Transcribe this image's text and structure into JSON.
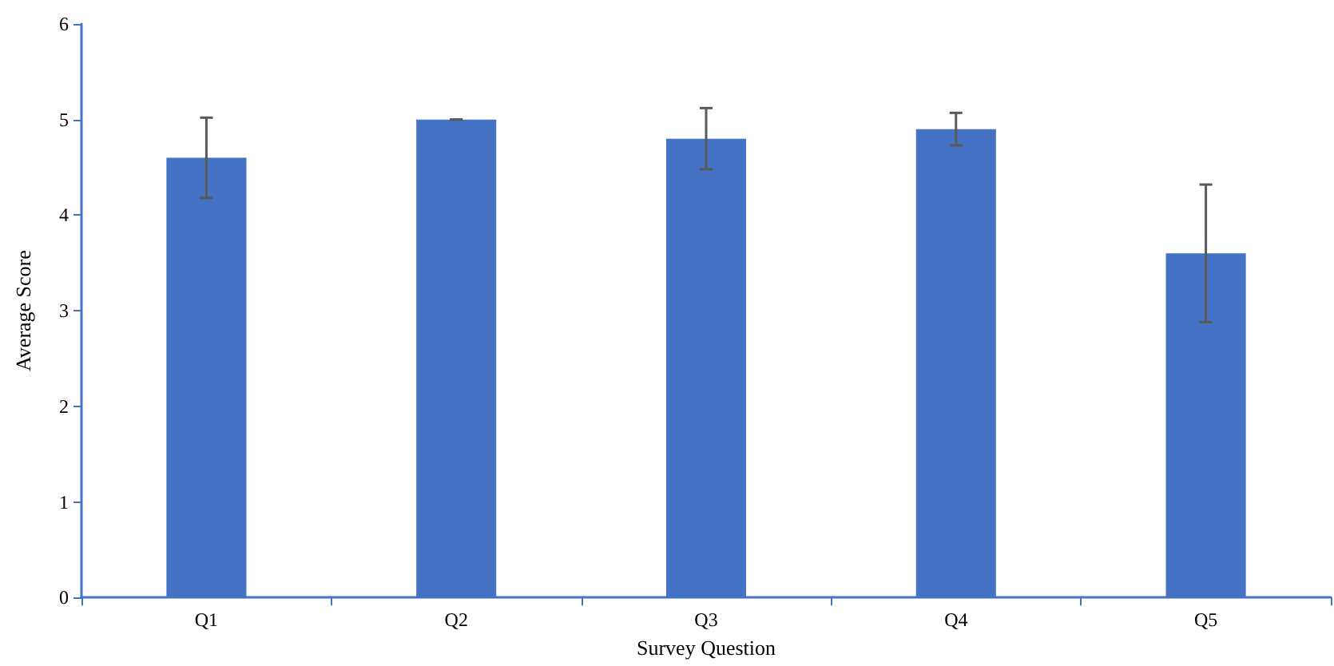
{
  "chart_data": {
    "type": "bar",
    "xlabel": "Survey Question",
    "ylabel": "Average Score",
    "categories": [
      "Q1",
      "Q2",
      "Q3",
      "Q4",
      "Q5"
    ],
    "values": [
      4.6,
      5.0,
      4.8,
      4.9,
      3.6
    ],
    "errors": [
      0.42,
      0,
      0.32,
      0.17,
      0.72
    ],
    "color": "#4472c4",
    "ylim": [
      0,
      6
    ],
    "yticks": [
      0,
      1,
      2,
      3,
      4,
      5,
      6
    ],
    "grid": false
  }
}
